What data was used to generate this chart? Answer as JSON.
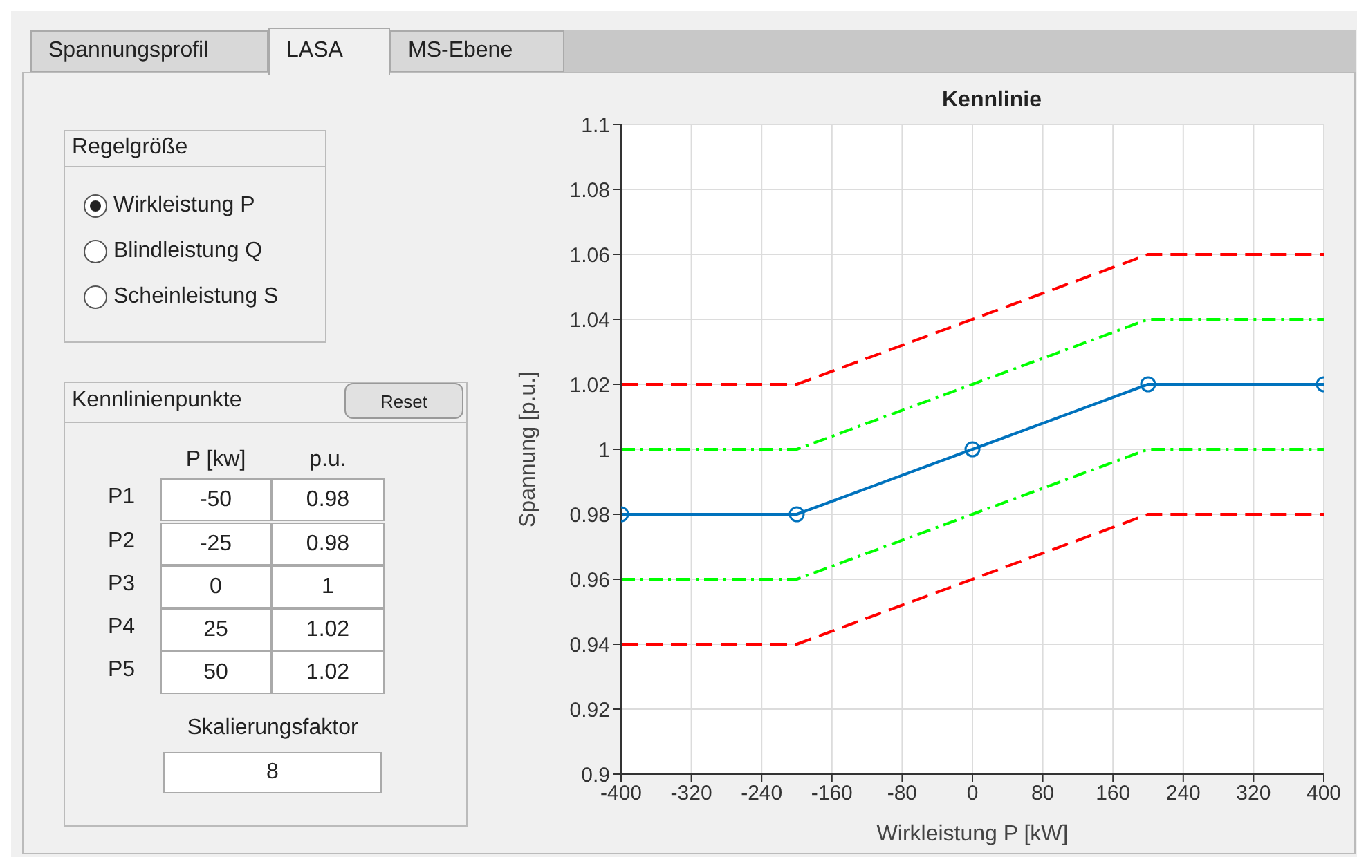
{
  "chart_data": {
    "type": "line",
    "title": "Kennlinie",
    "xlabel": "Wirkleistung P [kW]",
    "ylabel": "Spannung [p.u.]",
    "x": [
      -400,
      -200,
      0,
      200,
      400
    ],
    "series": [
      {
        "color": "#ff0000",
        "values": [
          1.02,
          1.02,
          1.04,
          1.06,
          1.06
        ],
        "line_style": "dashed",
        "marker": "none"
      },
      {
        "color": "#00ff00",
        "values": [
          1.0,
          1.0,
          1.02,
          1.04,
          1.04
        ],
        "line_style": "dashdot",
        "marker": "none"
      },
      {
        "color": "#0072bd",
        "values": [
          0.98,
          0.98,
          1.0,
          1.02,
          1.02
        ],
        "line_style": "solid",
        "marker": "circle"
      },
      {
        "color": "#00ff00",
        "values": [
          0.96,
          0.96,
          0.98,
          1.0,
          1.0
        ],
        "line_style": "dashdot",
        "marker": "none"
      },
      {
        "color": "#ff0000",
        "values": [
          0.94,
          0.94,
          0.96,
          0.98,
          0.98
        ],
        "line_style": "dashed",
        "marker": "none"
      }
    ],
    "xlim": [
      -400,
      400
    ],
    "xticks": [
      -400,
      -320,
      -240,
      -160,
      -80,
      0,
      80,
      160,
      240,
      320,
      400
    ],
    "ylim": [
      0.9,
      1.1
    ],
    "yticks": [
      0.9,
      0.92,
      0.94,
      0.96,
      0.98,
      1,
      1.02,
      1.04,
      1.06,
      1.08,
      1.1
    ],
    "grid": true,
    "annotations": [
      "Spannungsprofil",
      "LASA",
      "MS-Ebene",
      "Regelgröße",
      "Wirkleistung P",
      "Blindleistung Q",
      "Scheinleistung S",
      "Kennlinienpunkte",
      "Reset",
      "P [kw]",
      "p.u.",
      "P1",
      "-50",
      "0.98",
      "P2",
      "-25",
      "0.98",
      "P3",
      "0",
      "1",
      "P4",
      "25",
      "1.02",
      "P5",
      "50",
      "1.02",
      "Skalierungsfaktor",
      "8"
    ]
  }
}
